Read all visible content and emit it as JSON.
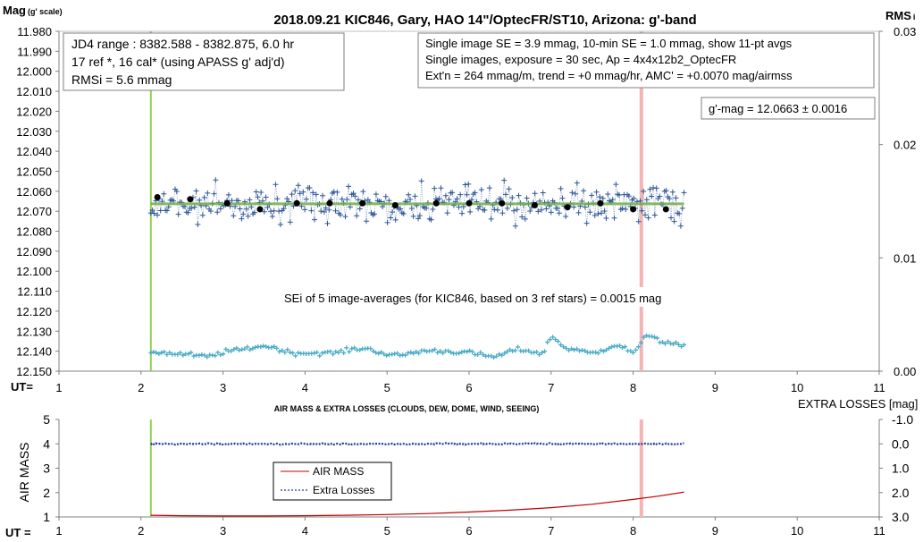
{
  "chart_data": [
    {
      "type": "scatter",
      "title": "2018.09.21  KIC846,  Gary, HAO 14\"/OptecFR/ST10,  Arizona:  g'-band",
      "ylabel": "Mag",
      "ylabel_sub": "(g' scale)",
      "y2label": "RMS",
      "y2label_sub": "i",
      "xlabel": "UT=",
      "xlim": [
        1,
        11
      ],
      "ylim": [
        11.98,
        12.15
      ],
      "y_inverted": true,
      "y2lim": [
        0,
        0.03
      ],
      "x_ticks": [
        "1",
        "2",
        "3",
        "4",
        "5",
        "6",
        "7",
        "8",
        "9",
        "10",
        "11"
      ],
      "y_ticks": [
        "11.980",
        "11.990",
        "12.000",
        "12.010",
        "12.020",
        "12.030",
        "12.040",
        "12.050",
        "12.060",
        "12.070",
        "12.080",
        "12.090",
        "12.100",
        "12.110",
        "12.120",
        "12.130",
        "12.140",
        "12.150"
      ],
      "y2_ticks": [
        "0.03",
        "0.02",
        "0.01",
        "0.00"
      ],
      "info_box_left": [
        "JD4 range : 8382.588 - 8382.875,  6.0  hr",
        "17 ref *, 16 cal* (using APASS g' adj'd)",
        "RMSi = 5.6 mmag"
      ],
      "info_box_right": [
        "Single image SE = 3.9 mmag, 10-min SE = 1.0 mmag, show  11-pt avgs",
        "Single images, exposure = 30 sec, Ap = 4x4x12b2_OptecFR",
        "Ext'n = 264 mmag/m, trend =  +0 mmag/hr, AMC' = +0.0070 mag/airmss"
      ],
      "gmag_label": "g'-mag = 12.0663 ± 0.0016",
      "sei_label": "SEi of 5 image-averages (for KIC846, based on 3 ref stars) = 0.0015  mag",
      "mean_mag": 12.0663,
      "start_marker_ut": 2.12,
      "end_marker_ut": 8.1,
      "x_range_data": [
        2.12,
        8.62
      ],
      "series": [
        {
          "kind": "single-images",
          "color": "#2e5597",
          "x_start": 2.12,
          "x_end": 8.62,
          "y_center": 12.0663,
          "scatter": 0.006
        },
        {
          "kind": "11-pt-avgs",
          "color": "#000000",
          "x": [
            2.2,
            2.6,
            3.05,
            3.45,
            3.9,
            4.3,
            4.7,
            5.1,
            5.6,
            6.0,
            6.4,
            6.8,
            7.2,
            7.6,
            8.0,
            8.4
          ],
          "y": [
            12.063,
            12.064,
            12.066,
            12.069,
            12.066,
            12.066,
            12.066,
            12.067,
            12.066,
            12.066,
            12.066,
            12.067,
            12.068,
            12.066,
            12.069,
            12.069
          ]
        },
        {
          "kind": "RMSi",
          "color": "#4bacc6",
          "axis": "y2",
          "x_start": 2.12,
          "x_end": 8.62,
          "y_points_ut": [
            2.12,
            2.5,
            2.8,
            3.1,
            3.5,
            3.9,
            4.3,
            4.7,
            5.1,
            5.5,
            5.9,
            6.3,
            6.6,
            6.9,
            7.0,
            7.2,
            7.5,
            7.8,
            8.0,
            8.2,
            8.4,
            8.62
          ],
          "y_points_val": [
            0.0017,
            0.0015,
            0.0013,
            0.0018,
            0.0022,
            0.0016,
            0.0016,
            0.002,
            0.0014,
            0.0018,
            0.0017,
            0.0013,
            0.0019,
            0.0016,
            0.003,
            0.002,
            0.0016,
            0.0023,
            0.0017,
            0.0032,
            0.0025,
            0.0022
          ]
        }
      ]
    },
    {
      "type": "line",
      "title": "AIR MASS & EXTRA LOSSES (CLOUDS, DEW, DOME, WIND, SEEING)",
      "y2title": "EXTRA LOSSES [mag]",
      "ylabel": "AIR MASS",
      "xlabel": "UT =",
      "xlim": [
        1,
        11
      ],
      "ylim": [
        1,
        5
      ],
      "y2lim": [
        3.0,
        -1.0
      ],
      "x_ticks": [
        "1",
        "2",
        "3",
        "4",
        "5",
        "6",
        "7",
        "8",
        "9",
        "10",
        "11"
      ],
      "y_ticks": [
        "5",
        "4",
        "3",
        "2",
        "1"
      ],
      "y2_ticks": [
        "-1.0",
        "0.0",
        "1.0",
        "2.0",
        "3.0"
      ],
      "start_marker_ut": 2.12,
      "end_marker_ut": 8.1,
      "legend": [
        "AIR MASS",
        "Extra Losses"
      ],
      "series": [
        {
          "name": "AIR MASS",
          "color": "#c00000",
          "x": [
            2.12,
            2.5,
            3.0,
            3.5,
            4.0,
            4.5,
            5.0,
            5.5,
            6.0,
            6.5,
            7.0,
            7.5,
            8.0,
            8.3,
            8.62
          ],
          "y": [
            1.07,
            1.05,
            1.04,
            1.04,
            1.05,
            1.07,
            1.1,
            1.14,
            1.2,
            1.28,
            1.38,
            1.52,
            1.72,
            1.85,
            2.02
          ]
        },
        {
          "name": "Extra Losses",
          "color": "#1f3c99",
          "axis": "y2",
          "x": [
            2.12,
            8.62
          ],
          "y": [
            0.0,
            0.0
          ]
        }
      ]
    }
  ]
}
